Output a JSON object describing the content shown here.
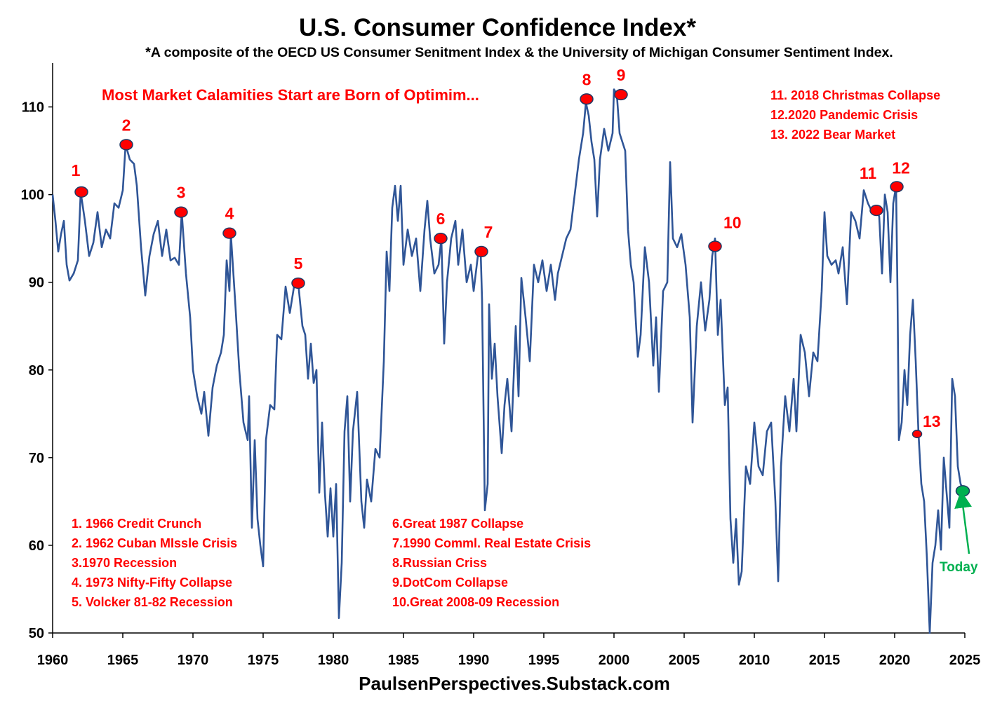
{
  "title": "U.S. Consumer Confidence Index*",
  "subtitle": "*A composite of the OECD US Consumer Senitment Index & the University of Michigan Consumer Sentiment Index.",
  "headline": "Most Market Calamities Start are Born of Optimim...",
  "source": "PaulsenPerspectives.Substack.com",
  "colors": {
    "line": "#2f5597",
    "marker": "#ff0000",
    "today_marker": "#00b050",
    "annotation": "#ff0000"
  },
  "legend_left": [
    "1. 1966 Credit Crunch",
    "2. 1962 Cuban MIssle Crisis",
    "3.1970 Recession",
    "4. 1973 Nifty-Fifty Collapse",
    "5. Volcker 81-82 Recession"
  ],
  "legend_middle": [
    "6.Great 1987  Collapse",
    "7.1990 Comml. Real Estate Crisis",
    "8.Russian Criss",
    "9.DotCom Collapse",
    "10.Great 2008-09 Recession"
  ],
  "legend_right": [
    "11. 2018 Christmas Collapse",
    "12.2020 Pandemic Crisis",
    "13. 2022 Bear Market"
  ],
  "today_label": "Today",
  "chart_data": {
    "type": "line",
    "xlim": [
      1960,
      2025
    ],
    "ylim": [
      50,
      115
    ],
    "x_ticks": [
      1960,
      1965,
      1970,
      1975,
      1980,
      1985,
      1990,
      1995,
      2000,
      2005,
      2010,
      2015,
      2020,
      2025
    ],
    "y_ticks": [
      50,
      60,
      70,
      80,
      90,
      100,
      110
    ],
    "grid": false,
    "series": [
      {
        "points": [
          [
            1960.0,
            100.0
          ],
          [
            1960.2,
            97.0
          ],
          [
            1960.4,
            93.5
          ],
          [
            1960.6,
            95.5
          ],
          [
            1960.8,
            97.0
          ],
          [
            1961.0,
            92.0
          ],
          [
            1961.2,
            90.2
          ],
          [
            1961.5,
            91.0
          ],
          [
            1961.8,
            92.5
          ],
          [
            1962.0,
            100.3
          ],
          [
            1962.3,
            97.0
          ],
          [
            1962.6,
            93.0
          ],
          [
            1962.9,
            94.5
          ],
          [
            1963.2,
            98.0
          ],
          [
            1963.5,
            94.0
          ],
          [
            1963.8,
            96.0
          ],
          [
            1964.1,
            95.0
          ],
          [
            1964.4,
            99.0
          ],
          [
            1964.7,
            98.5
          ],
          [
            1965.0,
            100.5
          ],
          [
            1965.2,
            105.7
          ],
          [
            1965.5,
            104.0
          ],
          [
            1965.8,
            103.5
          ],
          [
            1966.0,
            101.0
          ],
          [
            1966.3,
            94.0
          ],
          [
            1966.6,
            88.5
          ],
          [
            1966.9,
            93.0
          ],
          [
            1967.2,
            95.5
          ],
          [
            1967.5,
            97.0
          ],
          [
            1967.8,
            93.0
          ],
          [
            1968.1,
            96.0
          ],
          [
            1968.4,
            92.5
          ],
          [
            1968.7,
            92.8
          ],
          [
            1969.0,
            92.0
          ],
          [
            1969.2,
            98.0
          ],
          [
            1969.5,
            91.0
          ],
          [
            1969.8,
            86.0
          ],
          [
            1970.0,
            80.0
          ],
          [
            1970.3,
            77.0
          ],
          [
            1970.6,
            75.0
          ],
          [
            1970.8,
            77.5
          ],
          [
            1971.1,
            72.5
          ],
          [
            1971.4,
            78.0
          ],
          [
            1971.7,
            80.5
          ],
          [
            1972.0,
            82.0
          ],
          [
            1972.2,
            84.0
          ],
          [
            1972.4,
            92.5
          ],
          [
            1972.6,
            89.0
          ],
          [
            1972.7,
            95.5
          ],
          [
            1973.0,
            88.0
          ],
          [
            1973.3,
            80.0
          ],
          [
            1973.6,
            74.0
          ],
          [
            1973.9,
            72.0
          ],
          [
            1974.0,
            77.0
          ],
          [
            1974.2,
            62.0
          ],
          [
            1974.4,
            72.0
          ],
          [
            1974.6,
            63.0
          ],
          [
            1974.8,
            60.0
          ],
          [
            1975.0,
            57.6
          ],
          [
            1975.2,
            72.0
          ],
          [
            1975.5,
            76.0
          ],
          [
            1975.8,
            75.5
          ],
          [
            1976.0,
            84.0
          ],
          [
            1976.3,
            83.5
          ],
          [
            1976.6,
            89.5
          ],
          [
            1976.9,
            86.5
          ],
          [
            1977.2,
            89.5
          ],
          [
            1977.5,
            89.9
          ],
          [
            1977.8,
            85.0
          ],
          [
            1978.0,
            84.0
          ],
          [
            1978.2,
            79.0
          ],
          [
            1978.4,
            83.0
          ],
          [
            1978.6,
            78.5
          ],
          [
            1978.8,
            80.0
          ],
          [
            1979.0,
            66.0
          ],
          [
            1979.2,
            74.0
          ],
          [
            1979.4,
            66.0
          ],
          [
            1979.6,
            61.0
          ],
          [
            1979.8,
            66.5
          ],
          [
            1980.0,
            61.0
          ],
          [
            1980.2,
            67.0
          ],
          [
            1980.4,
            51.7
          ],
          [
            1980.6,
            58.0
          ],
          [
            1980.8,
            73.0
          ],
          [
            1981.0,
            77.0
          ],
          [
            1981.2,
            65.0
          ],
          [
            1981.4,
            73.0
          ],
          [
            1981.7,
            77.5
          ],
          [
            1982.0,
            65.0
          ],
          [
            1982.2,
            62.0
          ],
          [
            1982.4,
            67.5
          ],
          [
            1982.7,
            65.0
          ],
          [
            1983.0,
            71.0
          ],
          [
            1983.3,
            70.0
          ],
          [
            1983.6,
            81.0
          ],
          [
            1983.8,
            93.5
          ],
          [
            1984.0,
            89.0
          ],
          [
            1984.2,
            98.5
          ],
          [
            1984.4,
            101.0
          ],
          [
            1984.6,
            97.0
          ],
          [
            1984.8,
            101.0
          ],
          [
            1985.0,
            92.0
          ],
          [
            1985.3,
            96.0
          ],
          [
            1985.6,
            93.0
          ],
          [
            1985.9,
            95.0
          ],
          [
            1986.2,
            89.0
          ],
          [
            1986.5,
            96.0
          ],
          [
            1986.7,
            99.3
          ],
          [
            1986.9,
            95.0
          ],
          [
            1987.2,
            91.0
          ],
          [
            1987.5,
            92.0
          ],
          [
            1987.7,
            95.0
          ],
          [
            1987.9,
            83.0
          ],
          [
            1988.1,
            90.0
          ],
          [
            1988.4,
            95.0
          ],
          [
            1988.7,
            97.0
          ],
          [
            1988.9,
            92.0
          ],
          [
            1989.2,
            96.0
          ],
          [
            1989.5,
            90.0
          ],
          [
            1989.8,
            92.0
          ],
          [
            1990.0,
            89.0
          ],
          [
            1990.3,
            93.0
          ],
          [
            1990.5,
            93.5
          ],
          [
            1990.6,
            88.0
          ],
          [
            1990.8,
            64.0
          ],
          [
            1991.0,
            67.0
          ],
          [
            1991.1,
            87.5
          ],
          [
            1991.3,
            79.0
          ],
          [
            1991.5,
            83.0
          ],
          [
            1991.7,
            77.0
          ],
          [
            1992.0,
            70.5
          ],
          [
            1992.2,
            76.0
          ],
          [
            1992.4,
            79.0
          ],
          [
            1992.7,
            73.0
          ],
          [
            1993.0,
            85.0
          ],
          [
            1993.2,
            77.0
          ],
          [
            1993.4,
            90.5
          ],
          [
            1993.7,
            86.0
          ],
          [
            1994.0,
            81.0
          ],
          [
            1994.3,
            92.0
          ],
          [
            1994.6,
            90.0
          ],
          [
            1994.9,
            92.5
          ],
          [
            1995.2,
            89.0
          ],
          [
            1995.5,
            92.0
          ],
          [
            1995.8,
            88.0
          ],
          [
            1996.0,
            91.0
          ],
          [
            1996.3,
            93.0
          ],
          [
            1996.6,
            95.0
          ],
          [
            1996.9,
            96.0
          ],
          [
            1997.2,
            100.0
          ],
          [
            1997.5,
            104.0
          ],
          [
            1997.8,
            107.0
          ],
          [
            1998.0,
            110.5
          ],
          [
            1998.2,
            109.0
          ],
          [
            1998.4,
            106.0
          ],
          [
            1998.6,
            104.0
          ],
          [
            1998.8,
            97.5
          ],
          [
            1999.0,
            104.0
          ],
          [
            1999.3,
            107.5
          ],
          [
            1999.6,
            105.0
          ],
          [
            1999.9,
            107.0
          ],
          [
            2000.0,
            112.0
          ],
          [
            2000.2,
            111.5
          ],
          [
            2000.4,
            107.0
          ],
          [
            2000.6,
            106.0
          ],
          [
            2000.8,
            105.0
          ],
          [
            2001.0,
            96.0
          ],
          [
            2001.2,
            92.0
          ],
          [
            2001.4,
            90.0
          ],
          [
            2001.7,
            81.5
          ],
          [
            2001.9,
            84.0
          ],
          [
            2002.2,
            94.0
          ],
          [
            2002.5,
            90.0
          ],
          [
            2002.8,
            80.5
          ],
          [
            2003.0,
            86.0
          ],
          [
            2003.2,
            77.5
          ],
          [
            2003.5,
            89.0
          ],
          [
            2003.8,
            90.0
          ],
          [
            2004.0,
            103.7
          ],
          [
            2004.2,
            95.0
          ],
          [
            2004.5,
            94.0
          ],
          [
            2004.8,
            95.5
          ],
          [
            2005.1,
            92.0
          ],
          [
            2005.4,
            86.0
          ],
          [
            2005.6,
            74.0
          ],
          [
            2005.9,
            85.0
          ],
          [
            2006.2,
            90.0
          ],
          [
            2006.5,
            84.5
          ],
          [
            2006.8,
            88.0
          ],
          [
            2007.0,
            93.0
          ],
          [
            2007.2,
            95.0
          ],
          [
            2007.4,
            84.0
          ],
          [
            2007.6,
            88.0
          ],
          [
            2007.9,
            76.0
          ],
          [
            2008.1,
            78.0
          ],
          [
            2008.3,
            63.0
          ],
          [
            2008.5,
            58.0
          ],
          [
            2008.7,
            63.0
          ],
          [
            2008.9,
            55.5
          ],
          [
            2009.1,
            57.0
          ],
          [
            2009.4,
            69.0
          ],
          [
            2009.7,
            67.0
          ],
          [
            2010.0,
            74.0
          ],
          [
            2010.3,
            69.0
          ],
          [
            2010.6,
            68.0
          ],
          [
            2010.9,
            73.0
          ],
          [
            2011.2,
            74.0
          ],
          [
            2011.5,
            65.0
          ],
          [
            2011.7,
            55.9
          ],
          [
            2011.9,
            69.0
          ],
          [
            2012.2,
            77.0
          ],
          [
            2012.5,
            73.0
          ],
          [
            2012.8,
            79.0
          ],
          [
            2013.0,
            73.0
          ],
          [
            2013.3,
            84.0
          ],
          [
            2013.6,
            82.0
          ],
          [
            2013.9,
            77.0
          ],
          [
            2014.2,
            82.0
          ],
          [
            2014.5,
            81.0
          ],
          [
            2014.8,
            89.0
          ],
          [
            2015.0,
            98.0
          ],
          [
            2015.2,
            93.0
          ],
          [
            2015.5,
            92.0
          ],
          [
            2015.8,
            92.5
          ],
          [
            2016.0,
            91.0
          ],
          [
            2016.3,
            94.0
          ],
          [
            2016.6,
            87.5
          ],
          [
            2016.9,
            98.0
          ],
          [
            2017.2,
            97.0
          ],
          [
            2017.5,
            95.0
          ],
          [
            2017.8,
            100.5
          ],
          [
            2018.1,
            99.0
          ],
          [
            2018.4,
            98.0
          ],
          [
            2018.7,
            98.2
          ],
          [
            2018.9,
            97.5
          ],
          [
            2019.1,
            91.0
          ],
          [
            2019.3,
            100.0
          ],
          [
            2019.5,
            98.0
          ],
          [
            2019.7,
            90.0
          ],
          [
            2019.9,
            99.0
          ],
          [
            2020.1,
            101.0
          ],
          [
            2020.2,
            89.0
          ],
          [
            2020.3,
            72.0
          ],
          [
            2020.5,
            74.0
          ],
          [
            2020.7,
            80.0
          ],
          [
            2020.9,
            76.0
          ],
          [
            2021.1,
            84.0
          ],
          [
            2021.3,
            88.0
          ],
          [
            2021.5,
            81.0
          ],
          [
            2021.7,
            72.7
          ],
          [
            2021.9,
            67.0
          ],
          [
            2022.1,
            65.0
          ],
          [
            2022.3,
            58.5
          ],
          [
            2022.5,
            50.0
          ],
          [
            2022.7,
            58.0
          ],
          [
            2022.9,
            60.0
          ],
          [
            2023.1,
            64.0
          ],
          [
            2023.3,
            59.5
          ],
          [
            2023.5,
            70.0
          ],
          [
            2023.7,
            66.0
          ],
          [
            2023.9,
            62.0
          ],
          [
            2024.1,
            79.0
          ],
          [
            2024.3,
            77.0
          ],
          [
            2024.5,
            69.0
          ],
          [
            2024.7,
            67.0
          ],
          [
            2024.9,
            66.3
          ]
        ]
      }
    ],
    "markers": [
      {
        "label": "1",
        "x": 1962.05,
        "y": 100.3
      },
      {
        "label": "2",
        "x": 1965.25,
        "y": 105.7
      },
      {
        "label": "3",
        "x": 1969.15,
        "y": 98.0
      },
      {
        "label": "4",
        "x": 1972.6,
        "y": 95.6
      },
      {
        "label": "5",
        "x": 1977.5,
        "y": 89.9
      },
      {
        "label": "6",
        "x": 1987.65,
        "y": 95.0
      },
      {
        "label": "7",
        "x": 1990.55,
        "y": 93.5
      },
      {
        "label": "8",
        "x": 1998.05,
        "y": 110.9
      },
      {
        "label": "9",
        "x": 2000.5,
        "y": 111.4
      },
      {
        "label": "10",
        "x": 2007.2,
        "y": 94.1
      },
      {
        "label": "11",
        "x": 2018.7,
        "y": 98.2
      },
      {
        "label": "12",
        "x": 2020.15,
        "y": 100.9
      },
      {
        "label": "13",
        "x": 2021.6,
        "y": 72.7
      }
    ],
    "today_marker": {
      "x": 2024.85,
      "y": 66.2
    }
  }
}
